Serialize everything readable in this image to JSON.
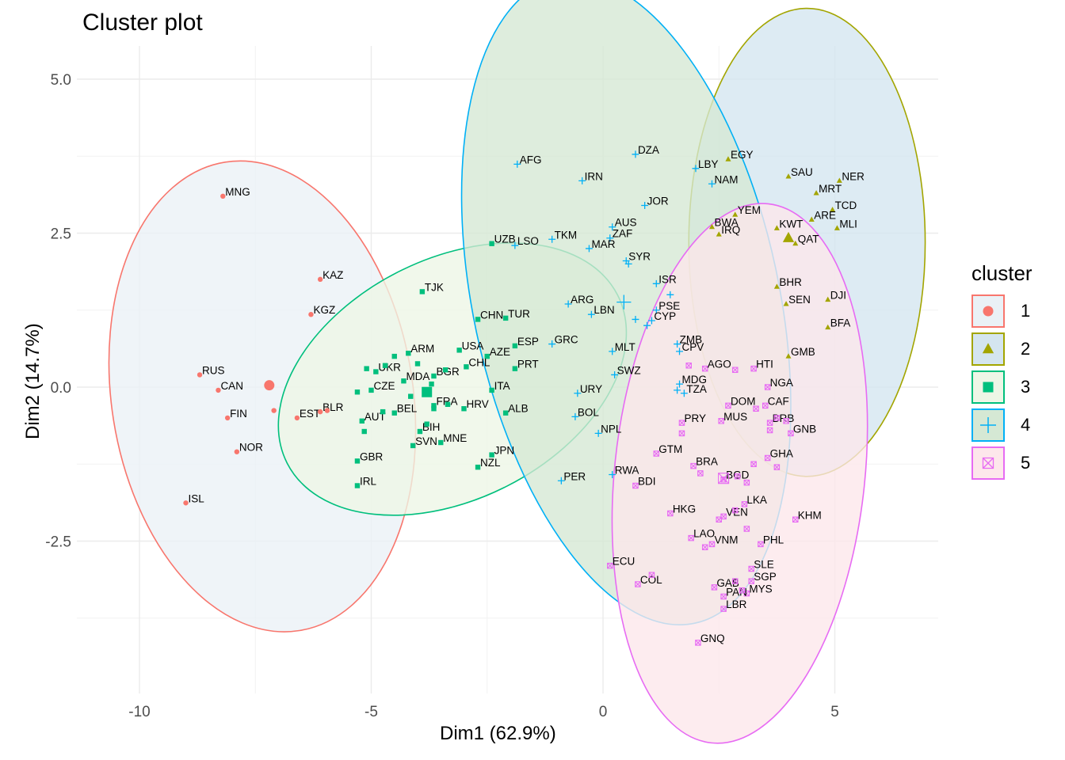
{
  "chart_data": {
    "type": "scatter",
    "title": "Cluster plot",
    "xlabel": "Dim1 (62.9%)",
    "ylabel": "Dim2 (14.7%)",
    "xlim": [
      -11.4,
      7.3
    ],
    "ylim": [
      -4.85,
      5.4
    ],
    "x_ticks": [
      -10,
      -5,
      0,
      5
    ],
    "x_tick_labels": [
      "-10",
      "-5",
      "0",
      "5"
    ],
    "y_ticks": [
      5.0,
      2.5,
      0.0,
      -2.5
    ],
    "y_tick_labels": [
      "5.0",
      "2.5",
      "0.0",
      "-2.5"
    ],
    "grid": true,
    "legend_title": "cluster",
    "legend_position": "right",
    "clusters": [
      {
        "id": "1",
        "color": "#F8766D",
        "fill": "#EAF1F6",
        "shape": "circle",
        "center": [
          -7.2,
          0.03
        ],
        "ellipse": {
          "cx": -7.35,
          "cy": -0.15,
          "rx": 3.25,
          "ry": 3.85,
          "angle": -9
        },
        "points": [
          {
            "label": "MNG",
            "x": -8.2,
            "y": 3.1
          },
          {
            "label": "KAZ",
            "x": -6.1,
            "y": 1.75
          },
          {
            "label": "KGZ",
            "x": -6.3,
            "y": 1.18
          },
          {
            "label": "RUS",
            "x": -8.7,
            "y": 0.2
          },
          {
            "label": "CAN",
            "x": -8.3,
            "y": -0.05
          },
          {
            "label": "FIN",
            "x": -8.1,
            "y": -0.5
          },
          {
            "label": "EST",
            "x": -6.6,
            "y": -0.5
          },
          {
            "label": "BLR",
            "x": -6.1,
            "y": -0.4
          },
          {
            "label": "NOR",
            "x": -7.9,
            "y": -1.05
          },
          {
            "label": "ISL",
            "x": -9.0,
            "y": -1.88
          },
          {
            "label": "",
            "x": -7.1,
            "y": -0.38
          },
          {
            "label": "",
            "x": -5.95,
            "y": -0.38
          }
        ]
      },
      {
        "id": "2",
        "color": "#A3A500",
        "fill": "#D4E5EF",
        "shape": "triangle",
        "center": [
          4.0,
          2.42
        ],
        "ellipse": {
          "cx": 4.4,
          "cy": 2.35,
          "rx": 2.55,
          "ry": 3.8,
          "angle": 0
        },
        "points": [
          {
            "label": "EGY",
            "x": 2.7,
            "y": 3.7
          },
          {
            "label": "SAU",
            "x": 4.0,
            "y": 3.42
          },
          {
            "label": "NER",
            "x": 5.1,
            "y": 3.35
          },
          {
            "label": "MRT",
            "x": 4.6,
            "y": 3.15
          },
          {
            "label": "TCD",
            "x": 4.95,
            "y": 2.88
          },
          {
            "label": "YEM",
            "x": 2.85,
            "y": 2.8
          },
          {
            "label": "BWA",
            "x": 2.35,
            "y": 2.6
          },
          {
            "label": "ARE",
            "x": 4.5,
            "y": 2.72
          },
          {
            "label": "KWT",
            "x": 3.75,
            "y": 2.58
          },
          {
            "label": "MLI",
            "x": 5.05,
            "y": 2.58
          },
          {
            "label": "IRQ",
            "x": 2.5,
            "y": 2.48
          },
          {
            "label": "QAT",
            "x": 4.15,
            "y": 2.33
          },
          {
            "label": "BHR",
            "x": 3.75,
            "y": 1.63
          },
          {
            "label": "DJI",
            "x": 4.85,
            "y": 1.42
          },
          {
            "label": "SEN",
            "x": 3.95,
            "y": 1.35
          },
          {
            "label": "BFA",
            "x": 4.85,
            "y": 0.97
          },
          {
            "label": "GMB",
            "x": 4.0,
            "y": 0.5
          }
        ]
      },
      {
        "id": "3",
        "color": "#00BF7D",
        "fill": "#EDF6E6",
        "shape": "square",
        "center": [
          -3.8,
          -0.08
        ],
        "ellipse": {
          "cx": -3.25,
          "cy": 0.13,
          "rx": 4.0,
          "ry": 1.95,
          "angle": -27
        },
        "points": [
          {
            "label": "TJK",
            "x": -3.9,
            "y": 1.55
          },
          {
            "label": "UZB",
            "x": -2.4,
            "y": 2.33
          },
          {
            "label": "CHN",
            "x": -2.7,
            "y": 1.1
          },
          {
            "label": "TUR",
            "x": -2.1,
            "y": 1.12
          },
          {
            "label": "ESP",
            "x": -1.9,
            "y": 0.67
          },
          {
            "label": "USA",
            "x": -3.1,
            "y": 0.6
          },
          {
            "label": "AZE",
            "x": -2.5,
            "y": 0.5
          },
          {
            "label": "ARM",
            "x": -4.2,
            "y": 0.55
          },
          {
            "label": "CHL",
            "x": -2.95,
            "y": 0.33
          },
          {
            "label": "PRT",
            "x": -1.9,
            "y": 0.3
          },
          {
            "label": "BGR",
            "x": -3.65,
            "y": 0.18
          },
          {
            "label": "UKR",
            "x": -4.9,
            "y": 0.25
          },
          {
            "label": "MDA",
            "x": -4.3,
            "y": 0.1
          },
          {
            "label": "ITA",
            "x": -2.4,
            "y": -0.05
          },
          {
            "label": "CZE",
            "x": -5.0,
            "y": -0.05
          },
          {
            "label": "FRA",
            "x": -3.65,
            "y": -0.3
          },
          {
            "label": "HRV",
            "x": -3.0,
            "y": -0.35
          },
          {
            "label": "ALB",
            "x": -2.1,
            "y": -0.42
          },
          {
            "label": "BEL",
            "x": -4.5,
            "y": -0.42
          },
          {
            "label": "AUT",
            "x": -5.2,
            "y": -0.55
          },
          {
            "label": "BIH",
            "x": -3.95,
            "y": -0.72
          },
          {
            "label": "SVN",
            "x": -4.1,
            "y": -0.95
          },
          {
            "label": "MNE",
            "x": -3.5,
            "y": -0.9
          },
          {
            "label": "JPN",
            "x": -2.4,
            "y": -1.1
          },
          {
            "label": "GBR",
            "x": -5.3,
            "y": -1.2
          },
          {
            "label": "NZL",
            "x": -2.7,
            "y": -1.3
          },
          {
            "label": "IRL",
            "x": -5.3,
            "y": -1.6
          },
          {
            "label": "",
            "x": -4.5,
            "y": 0.5
          },
          {
            "label": "",
            "x": -4.7,
            "y": 0.35
          },
          {
            "label": "",
            "x": -5.1,
            "y": 0.3
          },
          {
            "label": "",
            "x": -4.0,
            "y": 0.38
          },
          {
            "label": "",
            "x": -3.4,
            "y": 0.28
          },
          {
            "label": "",
            "x": -3.7,
            "y": 0.05
          },
          {
            "label": "",
            "x": -4.15,
            "y": -0.15
          },
          {
            "label": "",
            "x": -5.3,
            "y": -0.08
          },
          {
            "label": "",
            "x": -4.75,
            "y": -0.4
          },
          {
            "label": "",
            "x": -5.15,
            "y": -0.72
          },
          {
            "label": "",
            "x": -3.65,
            "y": -0.35
          },
          {
            "label": "",
            "x": -3.35,
            "y": -0.28
          },
          {
            "label": "",
            "x": -3.8,
            "y": -0.6
          }
        ]
      },
      {
        "id": "4",
        "color": "#00B0F6",
        "fill": "#D5E8D4",
        "shape": "plus",
        "center": [
          0.45,
          1.38
        ],
        "ellipse": {
          "cx": 0.5,
          "cy": 1.4,
          "rx": 3.3,
          "ry": 5.35,
          "angle": -12
        },
        "points": [
          {
            "label": "DZA",
            "x": 0.7,
            "y": 3.78
          },
          {
            "label": "AFG",
            "x": -1.85,
            "y": 3.62
          },
          {
            "label": "LBY",
            "x": 2.0,
            "y": 3.55
          },
          {
            "label": "IRN",
            "x": -0.45,
            "y": 3.35
          },
          {
            "label": "NAM",
            "x": 2.35,
            "y": 3.3
          },
          {
            "label": "JOR",
            "x": 0.9,
            "y": 2.95
          },
          {
            "label": "AUS",
            "x": 0.2,
            "y": 2.6
          },
          {
            "label": "ZAF",
            "x": 0.15,
            "y": 2.42
          },
          {
            "label": "TKM",
            "x": -1.1,
            "y": 2.4
          },
          {
            "label": "LSO",
            "x": -1.9,
            "y": 2.3
          },
          {
            "label": "MAR",
            "x": -0.3,
            "y": 2.25
          },
          {
            "label": "SYR",
            "x": 0.5,
            "y": 2.05
          },
          {
            "label": "ISR",
            "x": 1.15,
            "y": 1.68
          },
          {
            "label": "ARG",
            "x": -0.75,
            "y": 1.35
          },
          {
            "label": "PSE",
            "x": 1.15,
            "y": 1.25
          },
          {
            "label": "LBN",
            "x": -0.25,
            "y": 1.18
          },
          {
            "label": "CYP",
            "x": 1.05,
            "y": 1.08
          },
          {
            "label": "GRC",
            "x": -1.1,
            "y": 0.7
          },
          {
            "label": "ZMB",
            "x": 1.6,
            "y": 0.7
          },
          {
            "label": "MLT",
            "x": 0.2,
            "y": 0.58
          },
          {
            "label": "CPV",
            "x": 1.65,
            "y": 0.58
          },
          {
            "label": "SWZ",
            "x": 0.25,
            "y": 0.2
          },
          {
            "label": "MDG",
            "x": 1.65,
            "y": 0.05
          },
          {
            "label": "URY",
            "x": -0.55,
            "y": -0.1
          },
          {
            "label": "TZA",
            "x": 1.75,
            "y": -0.1
          },
          {
            "label": "BOL",
            "x": -0.6,
            "y": -0.48
          },
          {
            "label": "NPL",
            "x": -0.1,
            "y": -0.75
          },
          {
            "label": "RWA",
            "x": 0.2,
            "y": -1.42
          },
          {
            "label": "PER",
            "x": -0.9,
            "y": -1.52
          },
          {
            "label": "",
            "x": 1.45,
            "y": 1.5
          },
          {
            "label": "",
            "x": 0.7,
            "y": 1.1
          },
          {
            "label": "",
            "x": 0.95,
            "y": 1.0
          },
          {
            "label": "",
            "x": 1.6,
            "y": -0.05
          },
          {
            "label": "",
            "x": 0.55,
            "y": 2.0
          }
        ]
      },
      {
        "id": "5",
        "color": "#E76BF3",
        "fill": "#FDE7EB",
        "shape": "square-x",
        "center": [
          2.6,
          -1.48
        ],
        "ellipse": {
          "cx": 2.95,
          "cy": -1.4,
          "rx": 2.7,
          "ry": 4.4,
          "angle": 6
        },
        "points": [
          {
            "label": "AGO",
            "x": 2.2,
            "y": 0.3
          },
          {
            "label": "HTI",
            "x": 3.25,
            "y": 0.3
          },
          {
            "label": "NGA",
            "x": 3.55,
            "y": 0.0
          },
          {
            "label": "DOM",
            "x": 2.7,
            "y": -0.3
          },
          {
            "label": "CAF",
            "x": 3.5,
            "y": -0.3
          },
          {
            "label": "PRY",
            "x": 1.7,
            "y": -0.58
          },
          {
            "label": "MUS",
            "x": 2.55,
            "y": -0.55
          },
          {
            "label": "BRB",
            "x": 3.6,
            "y": -0.58
          },
          {
            "label": "GNB",
            "x": 4.05,
            "y": -0.75
          },
          {
            "label": "GTM",
            "x": 1.15,
            "y": -1.08
          },
          {
            "label": "GHA",
            "x": 3.55,
            "y": -1.15
          },
          {
            "label": "BRA",
            "x": 1.95,
            "y": -1.28
          },
          {
            "label": "BGD",
            "x": 2.6,
            "y": -1.5
          },
          {
            "label": "BDI",
            "x": 0.7,
            "y": -1.6
          },
          {
            "label": "LKA",
            "x": 3.05,
            "y": -1.9
          },
          {
            "label": "HKG",
            "x": 1.45,
            "y": -2.05
          },
          {
            "label": "VEN",
            "x": 2.6,
            "y": -2.1
          },
          {
            "label": "KHM",
            "x": 4.15,
            "y": -2.15
          },
          {
            "label": "LAO",
            "x": 1.9,
            "y": -2.45
          },
          {
            "label": "VNM",
            "x": 2.35,
            "y": -2.55
          },
          {
            "label": "PHL",
            "x": 3.4,
            "y": -2.55
          },
          {
            "label": "ECU",
            "x": 0.15,
            "y": -2.9
          },
          {
            "label": "SLE",
            "x": 3.2,
            "y": -2.95
          },
          {
            "label": "COL",
            "x": 0.75,
            "y": -3.2
          },
          {
            "label": "SGP",
            "x": 3.2,
            "y": -3.15
          },
          {
            "label": "GAB",
            "x": 2.4,
            "y": -3.25
          },
          {
            "label": "MYS",
            "x": 3.1,
            "y": -3.35
          },
          {
            "label": "PAN",
            "x": 2.6,
            "y": -3.4
          },
          {
            "label": "LBR",
            "x": 2.6,
            "y": -3.6
          },
          {
            "label": "GNQ",
            "x": 2.05,
            "y": -4.15
          },
          {
            "label": "",
            "x": 1.85,
            "y": 0.35
          },
          {
            "label": "",
            "x": 2.85,
            "y": 0.28
          },
          {
            "label": "",
            "x": 3.3,
            "y": -0.35
          },
          {
            "label": "",
            "x": 3.75,
            "y": -0.5
          },
          {
            "label": "",
            "x": 3.95,
            "y": -0.55
          },
          {
            "label": "",
            "x": 1.7,
            "y": -0.75
          },
          {
            "label": "",
            "x": 3.6,
            "y": -0.7
          },
          {
            "label": "",
            "x": 3.25,
            "y": -1.25
          },
          {
            "label": "",
            "x": 3.75,
            "y": -1.3
          },
          {
            "label": "",
            "x": 3.1,
            "y": -1.55
          },
          {
            "label": "",
            "x": 2.9,
            "y": -1.45
          },
          {
            "label": "",
            "x": 2.1,
            "y": -1.4
          },
          {
            "label": "",
            "x": 2.5,
            "y": -2.15
          },
          {
            "label": "",
            "x": 2.85,
            "y": -2.0
          },
          {
            "label": "",
            "x": 3.1,
            "y": -2.3
          },
          {
            "label": "",
            "x": 2.2,
            "y": -2.6
          },
          {
            "label": "",
            "x": 1.05,
            "y": -3.05
          },
          {
            "label": "",
            "x": 3.0,
            "y": -3.3
          },
          {
            "label": "",
            "x": 2.85,
            "y": -3.15
          }
        ]
      }
    ]
  }
}
